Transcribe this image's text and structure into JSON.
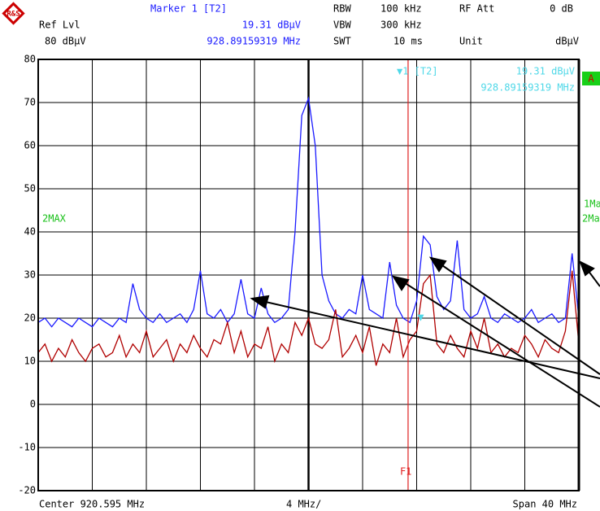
{
  "header": {
    "marker_title": "Marker 1 [T2]",
    "marker_level": "19.31 dBµV",
    "marker_freq": "928.89159319 MHz",
    "ref_lvl_label": "Ref Lvl",
    "ref_lvl": "80 dBµV",
    "rbw_label": "RBW",
    "rbw": "100 kHz",
    "vbw_label": "VBW",
    "vbw": "300 kHz",
    "swt_label": "SWT",
    "swt": "10 ms",
    "rf_att_label": "RF Att",
    "rf_att": "0 dB",
    "unit_label": "Unit",
    "unit": "dBµV"
  },
  "chart_data": {
    "type": "line",
    "xlim": [
      900.595,
      940.595
    ],
    "ylim": [
      -20,
      80
    ],
    "yticks": [
      80,
      70,
      60,
      50,
      40,
      30,
      20,
      10,
      0,
      -10,
      -20
    ],
    "xticks": [
      904.595,
      908.595,
      912.595,
      916.595,
      920.595,
      924.595,
      928.595,
      932.595,
      936.595
    ],
    "grid": true,
    "x": [
      900.595,
      901.095,
      901.595,
      902.095,
      902.595,
      903.095,
      903.595,
      904.095,
      904.595,
      905.095,
      905.595,
      906.095,
      906.595,
      907.095,
      907.595,
      908.095,
      908.595,
      909.095,
      909.595,
      910.095,
      910.595,
      911.095,
      911.595,
      912.095,
      912.595,
      913.095,
      913.595,
      914.095,
      914.595,
      915.095,
      915.595,
      916.095,
      916.595,
      917.095,
      917.595,
      918.095,
      918.595,
      919.095,
      919.595,
      920.095,
      920.595,
      921.095,
      921.595,
      922.095,
      922.595,
      923.095,
      923.595,
      924.095,
      924.595,
      925.095,
      925.595,
      926.095,
      926.595,
      927.095,
      927.595,
      928.095,
      928.595,
      929.095,
      929.595,
      930.095,
      930.595,
      931.095,
      931.595,
      932.095,
      932.595,
      933.095,
      933.595,
      934.095,
      934.595,
      935.095,
      935.595,
      936.095,
      936.595,
      937.095,
      937.595,
      938.095,
      938.595,
      939.095,
      939.595,
      940.095,
      940.595
    ],
    "series": [
      {
        "color": "#1a1aff",
        "values": [
          19,
          20,
          18,
          20,
          19,
          18,
          20,
          19,
          18,
          20,
          19,
          18,
          20,
          19,
          28,
          22,
          20,
          19,
          21,
          19,
          20,
          21,
          19,
          22,
          31,
          21,
          20,
          22,
          19,
          21,
          29,
          21,
          20,
          27,
          21,
          19,
          20,
          22,
          40,
          67,
          71,
          60,
          30,
          24,
          21,
          20,
          22,
          21,
          30,
          22,
          21,
          20,
          33,
          23,
          20,
          19,
          24,
          39,
          37,
          25,
          22,
          24,
          38,
          22,
          20,
          21,
          25,
          20,
          19,
          21,
          20,
          19,
          20,
          22,
          19,
          20,
          21,
          19,
          20,
          35,
          20
        ]
      },
      {
        "color": "#b00000",
        "values": [
          12,
          14,
          10,
          13,
          11,
          15,
          12,
          10,
          13,
          14,
          11,
          12,
          16,
          11,
          14,
          12,
          17,
          11,
          13,
          15,
          10,
          14,
          12,
          16,
          13,
          11,
          15,
          14,
          19,
          12,
          17,
          11,
          14,
          13,
          18,
          10,
          14,
          12,
          19,
          16,
          20,
          14,
          13,
          15,
          22,
          11,
          13,
          16,
          12,
          18,
          9,
          14,
          12,
          20,
          11,
          15,
          17,
          28,
          30,
          14,
          12,
          16,
          13,
          11,
          17,
          13,
          20,
          12,
          14,
          11,
          13,
          12,
          16,
          14,
          11,
          15,
          13,
          12,
          17,
          31,
          14
        ]
      }
    ],
    "marker": {
      "x": 928.89159319,
      "y": 19.31,
      "label": "▼1 [T2]",
      "level": "19.31 dBµV",
      "freq": "928.89159319 MHz"
    },
    "display_line": {
      "x": 927.96,
      "label": "F1"
    },
    "trace_labels": {
      "max": "2MAX",
      "a": "A",
      "m1": "1Ma",
      "m2": "2Ma"
    },
    "footer": {
      "center": "Center 920.595 MHz",
      "per_div": "4 MHz/",
      "span": "Span 40 MHz"
    }
  }
}
